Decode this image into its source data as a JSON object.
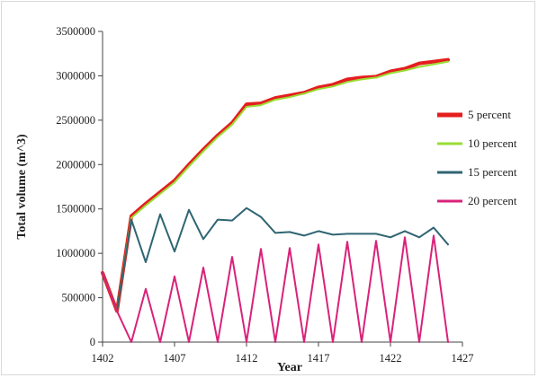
{
  "chart_data": {
    "type": "line",
    "xlabel": "Year",
    "ylabel": "Total volume (m^3)",
    "xlim": [
      1402,
      1427
    ],
    "ylim": [
      0,
      3500000
    ],
    "x_ticks": [
      1402,
      1407,
      1412,
      1417,
      1422,
      1427
    ],
    "y_ticks": [
      0,
      500000,
      1000000,
      1500000,
      2000000,
      2500000,
      3000000,
      3500000
    ],
    "y_tick_labels": [
      "0",
      "500000",
      "1000000",
      "1500000",
      "2000000",
      "2500000",
      "3000000",
      "3500000"
    ],
    "legend_position": "right",
    "grid": false,
    "x": [
      1402,
      1403,
      1404,
      1405,
      1406,
      1407,
      1408,
      1409,
      1410,
      1411,
      1412,
      1413,
      1414,
      1415,
      1416,
      1417,
      1418,
      1419,
      1420,
      1421,
      1422,
      1423,
      1424,
      1425,
      1426
    ],
    "series": [
      {
        "name": "5 percent",
        "color": "#e41e1e",
        "width": 4,
        "values": [
          780000,
          350000,
          1420000,
          1560000,
          1690000,
          1820000,
          2000000,
          2170000,
          2330000,
          2470000,
          2680000,
          2690000,
          2750000,
          2780000,
          2810000,
          2870000,
          2900000,
          2960000,
          2980000,
          2990000,
          3050000,
          3080000,
          3140000,
          3160000,
          3180000
        ]
      },
      {
        "name": "10 percent",
        "color": "#99dd33",
        "width": 2,
        "values": [
          780000,
          350000,
          1400000,
          1540000,
          1670000,
          1800000,
          1980000,
          2150000,
          2310000,
          2450000,
          2650000,
          2670000,
          2730000,
          2760000,
          2800000,
          2850000,
          2880000,
          2930000,
          2960000,
          2980000,
          3030000,
          3060000,
          3100000,
          3130000,
          3160000
        ]
      },
      {
        "name": "15 percent",
        "color": "#2f6572",
        "width": 2,
        "values": [
          780000,
          350000,
          1380000,
          900000,
          1440000,
          1020000,
          1490000,
          1160000,
          1380000,
          1370000,
          1510000,
          1410000,
          1230000,
          1240000,
          1200000,
          1250000,
          1210000,
          1220000,
          1220000,
          1220000,
          1180000,
          1250000,
          1180000,
          1290000,
          1100000
        ]
      },
      {
        "name": "20 percent",
        "color": "#d9227a",
        "width": 2,
        "values": [
          780000,
          350000,
          0,
          600000,
          0,
          740000,
          0,
          840000,
          0,
          960000,
          0,
          1050000,
          0,
          1060000,
          0,
          1100000,
          0,
          1130000,
          0,
          1140000,
          0,
          1180000,
          0,
          1200000,
          0
        ]
      }
    ]
  }
}
